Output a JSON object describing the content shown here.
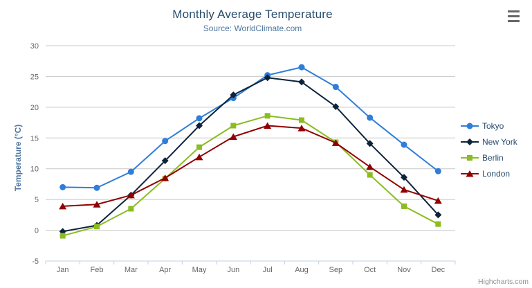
{
  "header": {
    "title": "Monthly Average Temperature",
    "subtitle": "Source: WorldClimate.com"
  },
  "credits": "Highcharts.com",
  "chart_data": {
    "type": "line",
    "title": "Monthly Average Temperature",
    "subtitle": "Source: WorldClimate.com",
    "xlabel": "",
    "ylabel": "Temperature (°C)",
    "categories": [
      "Jan",
      "Feb",
      "Mar",
      "Apr",
      "May",
      "Jun",
      "Jul",
      "Aug",
      "Sep",
      "Oct",
      "Nov",
      "Dec"
    ],
    "series": [
      {
        "name": "Tokyo",
        "color": "#2f7ed8",
        "marker": "circle",
        "values": [
          7.0,
          6.9,
          9.5,
          14.5,
          18.2,
          21.5,
          25.2,
          26.5,
          23.3,
          18.3,
          13.9,
          9.6
        ]
      },
      {
        "name": "New York",
        "color": "#0d233a",
        "marker": "diamond",
        "values": [
          -0.2,
          0.8,
          5.7,
          11.3,
          17.0,
          22.0,
          24.8,
          24.1,
          20.1,
          14.1,
          8.6,
          2.5
        ]
      },
      {
        "name": "Berlin",
        "color": "#8bbc21",
        "marker": "square",
        "values": [
          -0.9,
          0.6,
          3.5,
          8.4,
          13.5,
          17.0,
          18.6,
          17.9,
          14.3,
          9.0,
          3.9,
          1.0
        ]
      },
      {
        "name": "London",
        "color": "#910000",
        "marker": "triangle",
        "values": [
          3.9,
          4.2,
          5.7,
          8.5,
          11.9,
          15.2,
          17.0,
          16.6,
          14.2,
          10.3,
          6.6,
          4.8
        ]
      }
    ],
    "ylim": [
      -5,
      30
    ],
    "ytick_step": 5,
    "grid": true,
    "legend_position": "right"
  },
  "colors": {
    "grid": "#c8c8c8",
    "axis_line": "#c0d0e0",
    "axis_label": "#666666",
    "title": "#274b6d",
    "subtitle": "#4d759e",
    "axis_title": "#4d759e",
    "legend_text": "#274b6d",
    "credits": "#909090",
    "menu_icon": "#666666"
  }
}
